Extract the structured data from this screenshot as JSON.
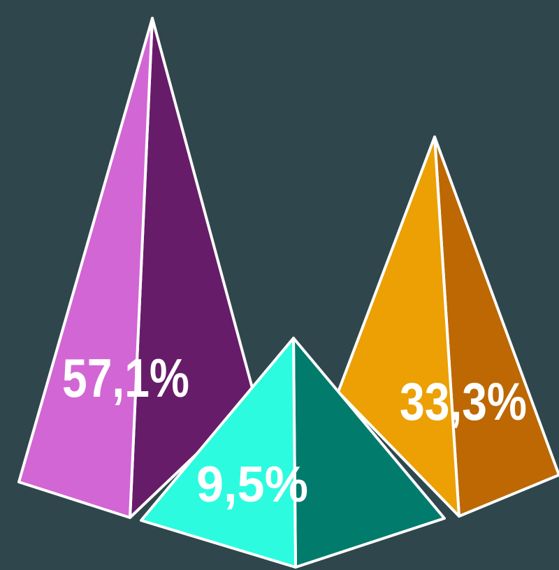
{
  "chart_data": {
    "type": "pyramid",
    "title": "",
    "background": "#2f464c",
    "series": [
      {
        "value": 57.1,
        "label": "57,1%",
        "light": "#d266d4",
        "dark": "#671c69"
      },
      {
        "value": 9.5,
        "label": "9,5%",
        "light": "#2dfbe0",
        "dark": "#017b6c"
      },
      {
        "value": 33.3,
        "label": "33,3%",
        "light": "#eca004",
        "dark": "#bd6803"
      }
    ]
  }
}
